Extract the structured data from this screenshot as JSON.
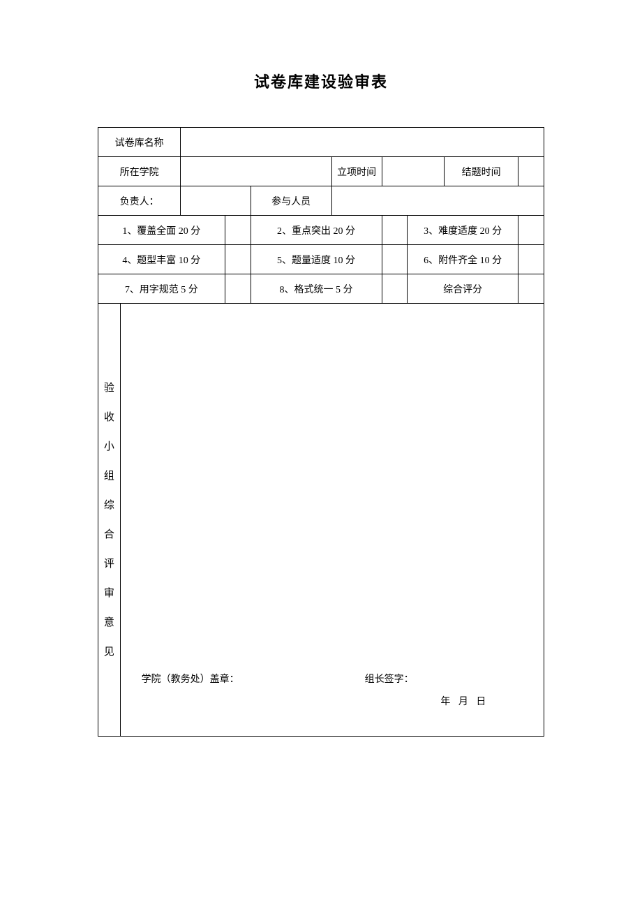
{
  "title": "试卷库建设验审表",
  "rows": {
    "name_label": "试卷库名称",
    "college_label": "所在学院",
    "start_time_label": "立项时间",
    "end_time_label": "结题时间",
    "leader_label": "负责人：",
    "members_label": "参与人员",
    "criteria": {
      "c1": "1、覆盖全面 20 分",
      "c2": "2、重点突出 20 分",
      "c3": "3、难度适度 20 分",
      "c4": "4、题型丰富 10 分",
      "c5": "5、题量适度 10 分",
      "c6": "6、附件齐全 10 分",
      "c7": "7、用字规范 5 分",
      "c8": "8、格式统一 5 分",
      "c9": "综合评分"
    },
    "review_header": "验收小组综合评审意见",
    "seal_label": "学院（教务处）盖章：",
    "sign_label": "组长签字：",
    "date_label": "年  月    日"
  }
}
